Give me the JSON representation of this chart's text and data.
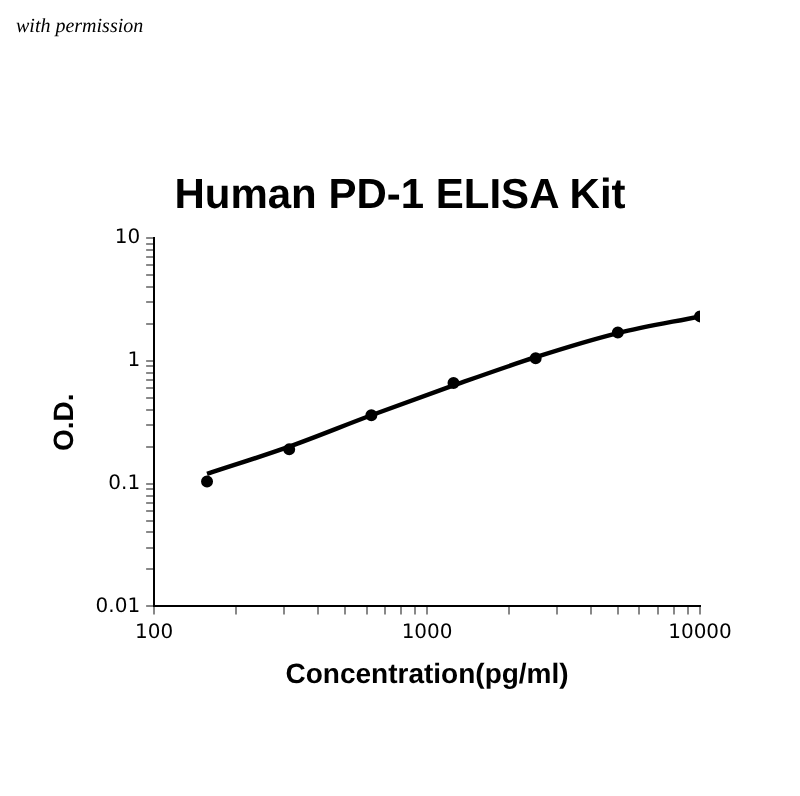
{
  "chart_data": {
    "type": "scatter",
    "title": "Human PD-1 ELISA Kit",
    "xlabel": "Concentration(pg/ml)",
    "ylabel": "O.D.",
    "annotations": [
      "with permission"
    ],
    "log": "xy",
    "grid": false,
    "legend": false,
    "marker": "circle",
    "line_style": "solid",
    "xlim": [
      100,
      10000
    ],
    "xticks": [
      100,
      1000,
      10000
    ],
    "ylim": [
      0.01,
      10
    ],
    "yticks": [
      0.01,
      0.1,
      1,
      10
    ],
    "series": [
      {
        "type": "scatter",
        "color": "#000000",
        "x": [
          156.25,
          312.5,
          625,
          1250,
          2500,
          5000,
          10000
        ],
        "values": [
          0.104,
          0.19,
          0.36,
          0.66,
          1.05,
          1.7,
          2.3
        ]
      },
      {
        "type": "line",
        "color": "#000000",
        "marker": "none",
        "x": [
          156.25,
          312.5,
          625,
          1250,
          2500,
          5000,
          10000
        ],
        "values": [
          0.12,
          0.2,
          0.36,
          0.63,
          1.07,
          1.68,
          2.3
        ]
      }
    ]
  }
}
